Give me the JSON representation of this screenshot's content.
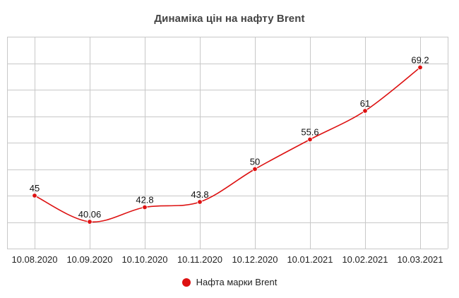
{
  "chart_data": {
    "type": "line",
    "title": "Динаміка цін на нафту Brent",
    "categories": [
      "10.08.2020",
      "10.09.2020",
      "10.10.2020",
      "10.11.2020",
      "10.12.2020",
      "10.01.2021",
      "10.02.2021",
      "10.03.2021"
    ],
    "series": [
      {
        "name": "Нафта марки Brent",
        "values": [
          45,
          40.06,
          42.8,
          43.8,
          50,
          55.6,
          61,
          69.2
        ],
        "labels": [
          "45",
          "40.06",
          "42.8",
          "43.8",
          "50",
          "55.6",
          "61",
          "69.2"
        ],
        "color": "#dd1111"
      }
    ],
    "xlabel": "",
    "ylabel": "",
    "ylim": [
      35,
      75
    ],
    "y_gridlines": [
      35,
      40,
      45,
      50,
      55,
      60,
      65,
      70,
      75
    ],
    "grid": true,
    "legend_position": "bottom-center",
    "smooth": true
  }
}
